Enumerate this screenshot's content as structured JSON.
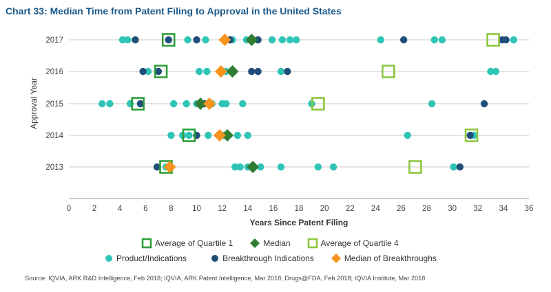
{
  "title": "Chart 33: Median Time from Patent Filing to Approval in the United States",
  "source": "Source: IQVIA, ARK R&D Intelligence, Feb 2018; IQVIA, ARK Patent Intelligence, Mar 2018; Drugs@FDA, Feb 2018; IQVIA Institute, Mar 2018",
  "colors": {
    "teal": "#2ec4b6",
    "navy": "#1f4e79",
    "green_dark": "#2e7d32",
    "green_light": "#8dc63f",
    "orange": "#f7941d",
    "grid": "#c8c8c8",
    "title": "#1b5a8a"
  },
  "legend": {
    "q1": "Average of Quartile 1",
    "median": "Median",
    "q4": "Average of Quartile 4",
    "product": "Product/Indications",
    "breakthrough": "Breakthrough Indications",
    "median_bt": "Median of Breakthroughs"
  },
  "chart_data": {
    "type": "scatter",
    "title": "Chart 33: Median Time from Patent Filing to Approval in the United States",
    "xlabel": "Years Since Patent Filing",
    "ylabel": "Approval Year",
    "xlim": [
      0,
      36
    ],
    "xticks": [
      0,
      2,
      4,
      6,
      8,
      10,
      12,
      14,
      16,
      18,
      20,
      22,
      24,
      26,
      28,
      30,
      32,
      34,
      36
    ],
    "categories": [
      "2017",
      "2016",
      "2015",
      "2014",
      "2013"
    ],
    "rows": [
      {
        "year": "2017",
        "product": [
          4.2,
          4.6,
          9.3,
          10.7,
          12.8,
          13.9,
          15.9,
          16.7,
          17.3,
          17.8,
          24.4,
          28.6,
          29.2,
          34.8
        ],
        "breakthrough": [
          5.2,
          7.8,
          10,
          12.6,
          14.8,
          26.2,
          33.9,
          34.2
        ],
        "q1": 7.8,
        "median": 14.3,
        "q4": 33.2,
        "median_bt": 12.2
      },
      {
        "year": "2016",
        "product": [
          6.2,
          10.2,
          10.8,
          12.3,
          16.6,
          33,
          33.4
        ],
        "breakthrough": [
          5.8,
          7,
          14.3,
          14.8,
          17.1
        ],
        "q1": 7.2,
        "median": 12.8,
        "q4": 25,
        "median_bt": 11.9
      },
      {
        "year": "2015",
        "product": [
          2.6,
          3.2,
          4.8,
          8.2,
          9.2,
          10,
          11.2,
          12,
          12.3,
          13.6,
          19,
          28.4
        ],
        "breakthrough": [
          5.6,
          10.6,
          32.5
        ],
        "q1": 5.4,
        "median": 10.3,
        "q4": 19.5,
        "median_bt": 11
      },
      {
        "year": "2014",
        "product": [
          8,
          8.9,
          9.4,
          10.9,
          12.1,
          13.2,
          14,
          26.5,
          31.7
        ],
        "breakthrough": [
          10,
          31.4
        ],
        "q1": 9.4,
        "median": 12.4,
        "q4": 31.5,
        "median_bt": 11.8
      },
      {
        "year": "2013",
        "product": [
          7.6,
          13,
          13.4,
          14,
          15,
          16.6,
          19.5,
          20.7,
          30.1
        ],
        "breakthrough": [
          6.9,
          30.6
        ],
        "q1": 7.6,
        "median": 14.4,
        "q4": 27.1,
        "median_bt": 7.9
      }
    ]
  }
}
